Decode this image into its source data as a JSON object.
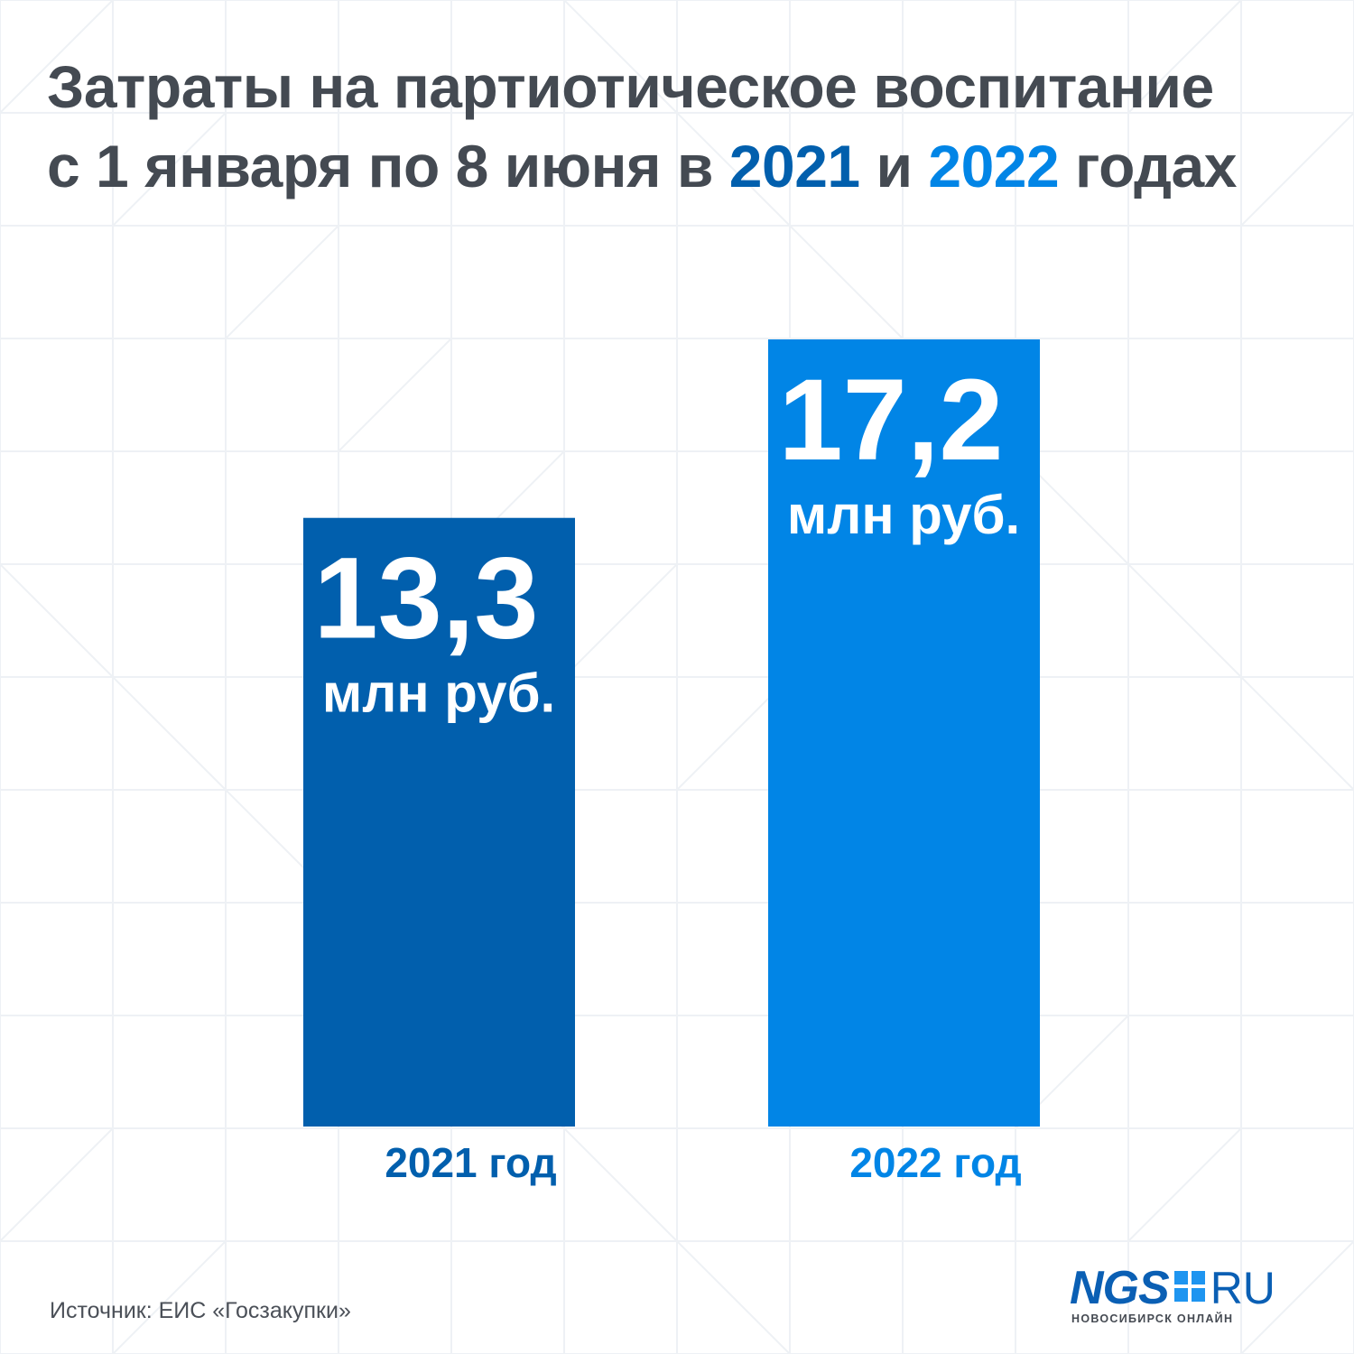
{
  "title": {
    "part1": "Затраты на партиотическое воспитание",
    "part2": "с 1 января по 8 июня в ",
    "year1": "2021",
    "and": " и ",
    "year2": "2022",
    "part3": " годах"
  },
  "colors": {
    "title_text": "#444a52",
    "bar_2021": "#015fad",
    "bar_2022": "#0185e6",
    "label_text": "#ffffff"
  },
  "chart_data": {
    "type": "bar",
    "title": "Затраты на партиотическое воспитание с 1 января по 8 июня в 2021 и 2022 годах",
    "categories": [
      "2021 год",
      "2022 год"
    ],
    "values": [
      13.3,
      17.2
    ],
    "value_labels": [
      "13,3",
      "17,2"
    ],
    "unit_label": "млн руб.",
    "colors": [
      "#015fad",
      "#0185e6"
    ],
    "ylim": [
      0,
      17.2
    ],
    "grid": false,
    "legend": "none",
    "xlabel": "",
    "ylabel": ""
  },
  "source": "Источник: ЕИС «Госзакупки»",
  "logo": {
    "name": "NGS",
    "suffix": "RU",
    "tagline": "НОВОСИБИРСК ОНЛАЙН"
  }
}
